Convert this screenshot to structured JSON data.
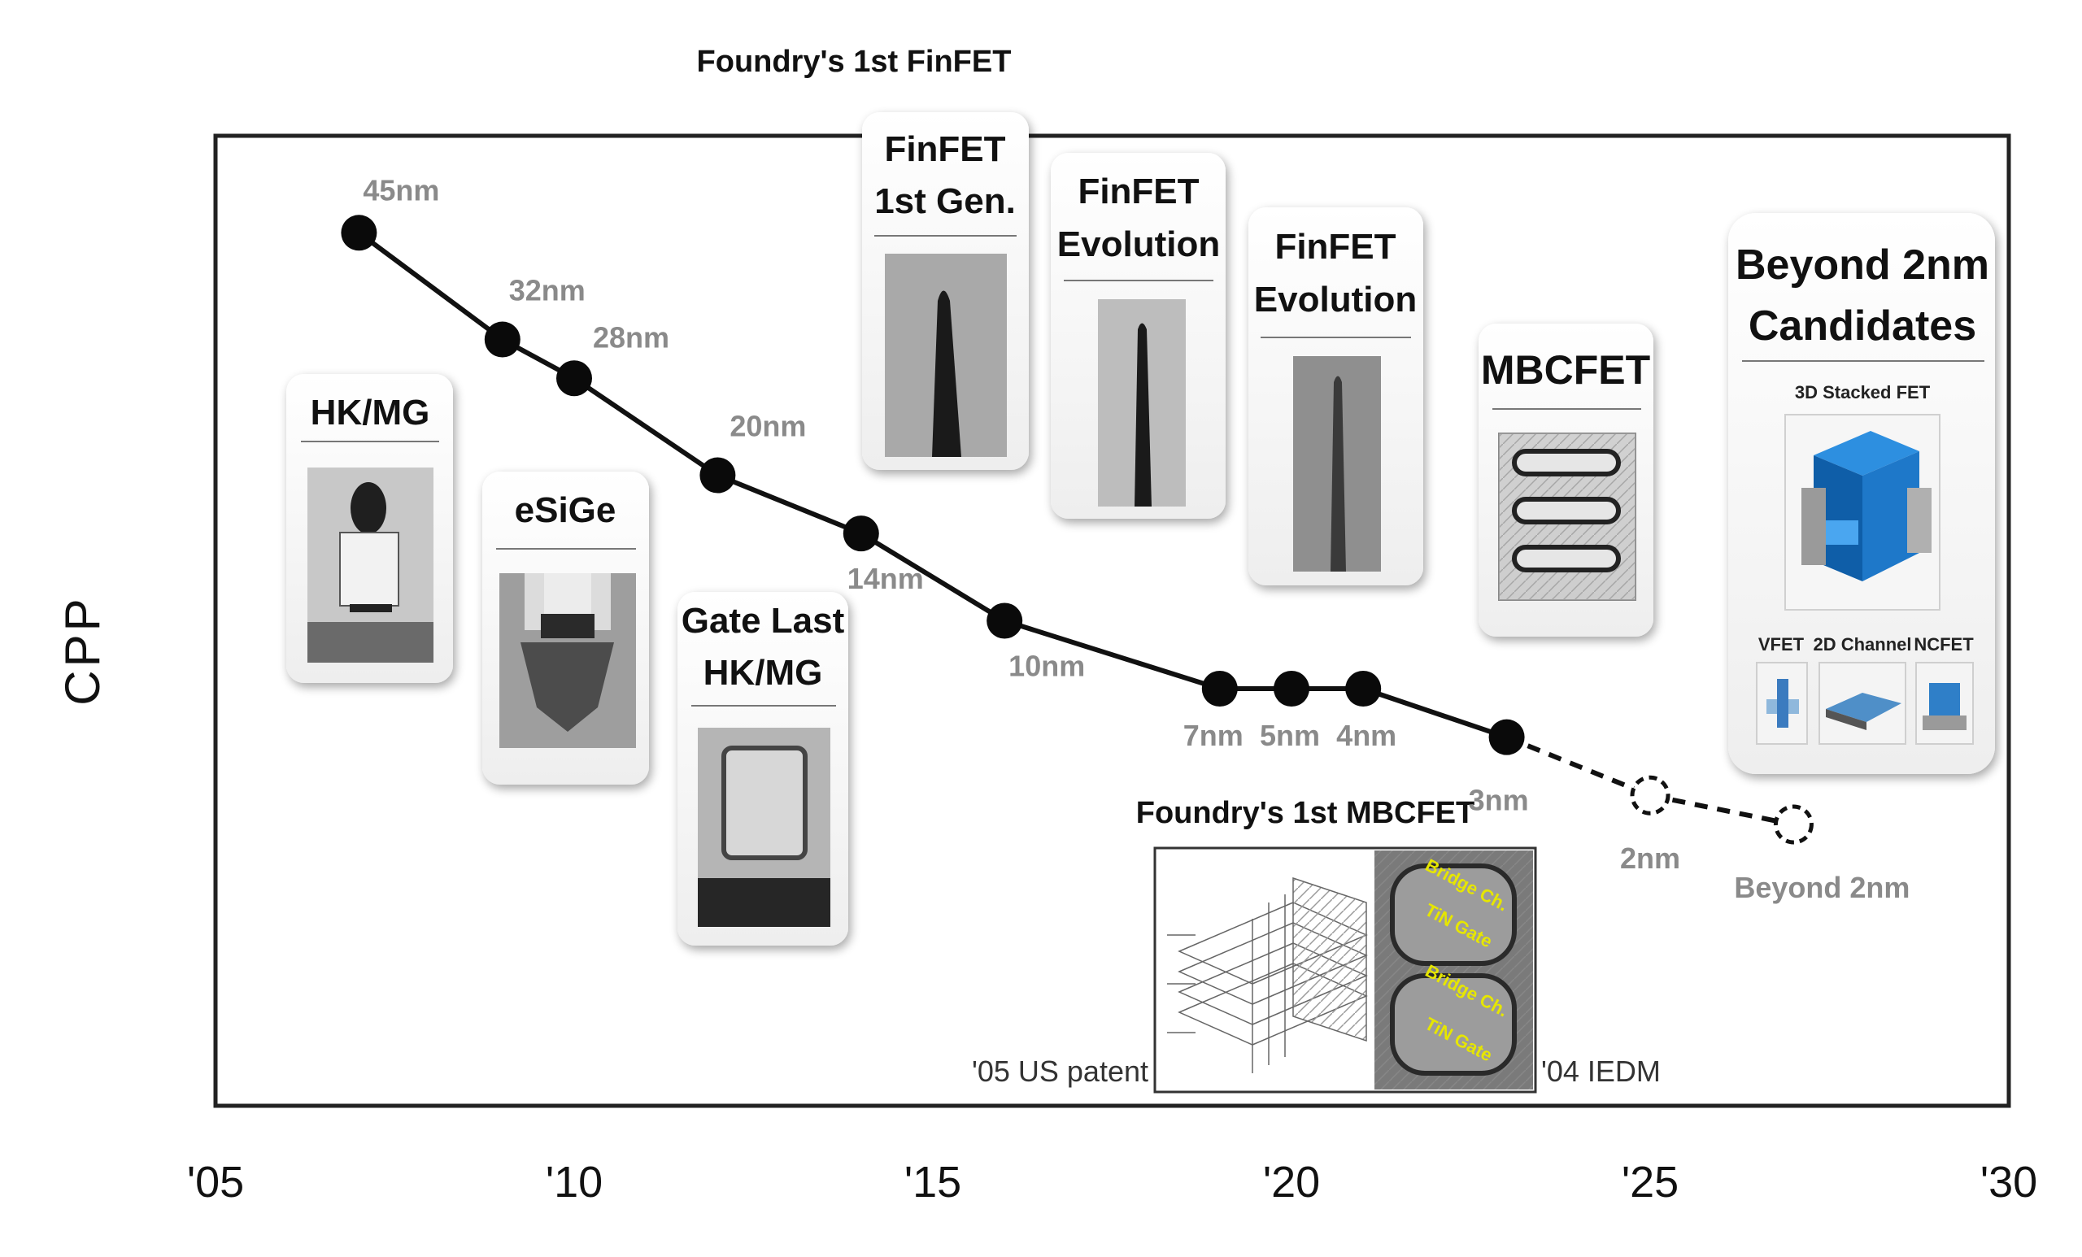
{
  "chart_data": {
    "type": "line",
    "title": "",
    "ylabel": "CPP",
    "xlabel": "",
    "x_ticks": [
      "'05",
      "'10",
      "'15",
      "'20",
      "'25",
      "'30"
    ],
    "x_tick_values": [
      2005,
      2010,
      2015,
      2020,
      2025,
      2030
    ],
    "xlim": [
      2005,
      2030
    ],
    "y_unit_note": "",
    "points": [
      {
        "label": "45nm",
        "year": 2007.0,
        "level": 0.9
      },
      {
        "label": "32nm",
        "year": 2009.0,
        "level": 0.79
      },
      {
        "label": "28nm",
        "year": 2010.0,
        "level": 0.75
      },
      {
        "label": "20nm",
        "year": 2012.0,
        "level": 0.65
      },
      {
        "label": "14nm",
        "year": 2014.0,
        "level": 0.59
      },
      {
        "label": "10nm",
        "year": 2016.0,
        "level": 0.5
      },
      {
        "label": "7nm",
        "year": 2019.0,
        "level": 0.43
      },
      {
        "label": "5nm",
        "year": 2020.0,
        "level": 0.43
      },
      {
        "label": "4nm",
        "year": 2021.0,
        "level": 0.43
      },
      {
        "label": "3nm",
        "year": 2023.0,
        "level": 0.38
      },
      {
        "label": "2nm",
        "year": 2025.0,
        "level": 0.32,
        "future": true
      },
      {
        "label": "Beyond 2nm",
        "year": 2027.0,
        "level": 0.29,
        "future": true
      }
    ],
    "grid": false,
    "legend": "none"
  },
  "annotations": {
    "top": "Foundry's 1st FinFET",
    "mbcfet_first": "Foundry's 1st MBCFET",
    "patent_caption": "'05 US patent",
    "iedm_caption": "'04 IEDM",
    "iedm_labels": [
      "Bridge Ch.",
      "TiN Gate",
      "Bridge Ch.",
      "TiN Gate"
    ]
  },
  "cards": {
    "hkmg": "HK/MG",
    "esige": "eSiGe",
    "gate_last": [
      "Gate Last",
      "HK/MG"
    ],
    "finfet_1st": [
      "FinFET",
      "1st Gen."
    ],
    "finfet_evo1": [
      "FinFET",
      "Evolution"
    ],
    "finfet_evo2": [
      "FinFET",
      "Evolution"
    ],
    "mbcfet": "MBCFET",
    "beyond": [
      "Beyond 2nm",
      "Candidates"
    ],
    "stacked_fet": "3D Stacked FET",
    "vfet": "VFET",
    "channel_2d": "2D Channel",
    "ncfet": "NCFET"
  }
}
